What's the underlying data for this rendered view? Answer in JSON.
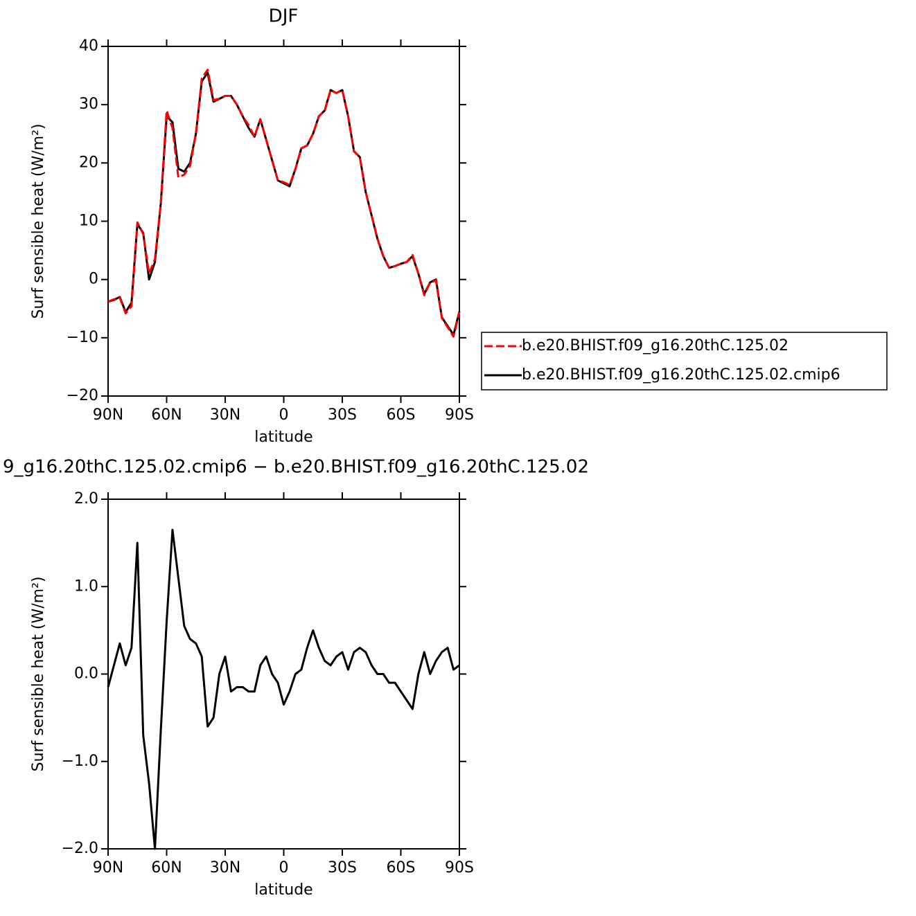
{
  "chart_data": [
    {
      "type": "line",
      "title": "DJF",
      "xlabel": "latitude",
      "ylabel": "Surf sensible heat (W/m²)",
      "x": [
        90,
        87,
        84,
        81,
        78,
        75,
        72,
        69,
        66,
        63,
        60,
        57,
        54,
        51,
        48,
        45,
        42,
        39,
        36,
        33,
        30,
        27,
        24,
        21,
        18,
        15,
        12,
        9,
        6,
        3,
        0,
        -3,
        -6,
        -9,
        -12,
        -15,
        -18,
        -21,
        -24,
        -27,
        -30,
        -33,
        -36,
        -39,
        -42,
        -45,
        -48,
        -51,
        -54,
        -57,
        -60,
        -63,
        -66,
        -69,
        -72,
        -75,
        -78,
        -81,
        -84,
        -87,
        -90
      ],
      "xlim": [
        90,
        -90
      ],
      "xticks": [
        {
          "value": 90,
          "label": "90N"
        },
        {
          "value": 60,
          "label": "60N"
        },
        {
          "value": 30,
          "label": "30N"
        },
        0,
        {
          "value": -30,
          "label": "30S"
        },
        {
          "value": -60,
          "label": "60S"
        },
        {
          "value": -90,
          "label": "90S"
        }
      ],
      "ylim": [
        -20,
        40
      ],
      "yticks": [
        {
          "value": -20,
          "label": "−20"
        },
        {
          "value": -10,
          "label": "−10"
        },
        0,
        10,
        20,
        30,
        40
      ],
      "legend": "right",
      "series": [
        {
          "name": "b.e20.BHIST.f09_g16.20thC.125.02",
          "color": "#ff0000",
          "linestyle": "dashed",
          "values": [
            -3.8,
            -3.4,
            -3.1,
            -5.8,
            -4.6,
            9.8,
            7.8,
            1,
            3.5,
            13,
            29,
            26,
            17.5,
            18,
            19.5,
            25,
            34.5,
            36,
            30.8,
            31,
            31.5,
            31.5,
            30,
            28,
            26.5,
            24.5,
            27.5,
            24,
            20.5,
            17,
            16.7,
            16.2,
            19,
            22.5,
            23,
            25,
            28,
            29,
            32.5,
            32,
            32.5,
            28,
            22,
            21,
            15,
            11,
            7,
            4,
            2,
            2.3,
            2.7,
            3,
            4.2,
            1,
            -2.7,
            -0.5,
            -0.2,
            -6.6,
            -8.2,
            -9.8,
            -5.6
          ]
        },
        {
          "name": "b.e20.BHIST.f09_g16.20thC.125.02.cmip6",
          "color": "#000000",
          "linestyle": "solid",
          "values": [
            -3.8,
            -3.5,
            -3,
            -5.6,
            -4,
            9.5,
            8,
            0,
            3,
            13,
            28,
            27,
            19,
            18.5,
            20,
            25,
            34,
            35.5,
            30.5,
            31,
            31.5,
            31.5,
            30,
            28,
            26,
            24.5,
            27.5,
            24,
            20.5,
            17,
            16.5,
            16,
            19,
            22.5,
            23,
            25,
            28,
            29,
            32.5,
            32,
            32.5,
            28,
            22,
            21,
            15,
            11,
            7,
            4,
            2,
            2.3,
            2.7,
            3,
            4,
            1,
            -2.5,
            -0.5,
            0,
            -6.5,
            -8,
            -9.5,
            -5.5
          ]
        }
      ]
    },
    {
      "type": "line",
      "title": "9_g16.20thC.125.02.cmip6 − b.e20.BHIST.f09_g16.20thC.125.02",
      "xlabel": "latitude",
      "ylabel": "Surf sensible heat (W/m²)",
      "x": [
        90,
        87,
        84,
        81,
        78,
        75,
        72,
        69,
        66,
        63,
        60,
        57,
        54,
        51,
        48,
        45,
        42,
        39,
        36,
        33,
        30,
        27,
        24,
        21,
        18,
        15,
        12,
        9,
        6,
        3,
        0,
        -3,
        -6,
        -9,
        -12,
        -15,
        -18,
        -21,
        -24,
        -27,
        -30,
        -33,
        -36,
        -39,
        -42,
        -45,
        -48,
        -51,
        -54,
        -57,
        -60,
        -63,
        -66,
        -69,
        -72,
        -75,
        -78,
        -81,
        -84,
        -87,
        -90
      ],
      "xlim": [
        90,
        -90
      ],
      "xticks": [
        {
          "value": 90,
          "label": "90N"
        },
        {
          "value": 60,
          "label": "60N"
        },
        {
          "value": 30,
          "label": "30N"
        },
        0,
        {
          "value": -30,
          "label": "30S"
        },
        {
          "value": -60,
          "label": "60S"
        },
        {
          "value": -90,
          "label": "90S"
        }
      ],
      "ylim": [
        -2,
        2
      ],
      "yticks": [
        {
          "value": -2,
          "label": "−2.0"
        },
        {
          "value": -1,
          "label": "−1.0"
        },
        {
          "value": 0,
          "label": "0.0"
        },
        {
          "value": 1,
          "label": "1.0"
        },
        {
          "value": 2,
          "label": "2.0"
        }
      ],
      "color": "#000000",
      "values": [
        -0.15,
        0.1,
        0.35,
        0.1,
        0.3,
        1.5,
        -0.7,
        -1.25,
        -2,
        -0.65,
        0.6,
        1.65,
        1.1,
        0.55,
        0.4,
        0.35,
        0.2,
        -0.6,
        -0.5,
        0,
        0.2,
        -0.2,
        -0.15,
        -0.15,
        -0.2,
        -0.2,
        0.1,
        0.2,
        0,
        -0.1,
        -0.35,
        -0.2,
        0,
        0.05,
        0.3,
        0.5,
        0.3,
        0.15,
        0.1,
        0.2,
        0.25,
        0.05,
        0.25,
        0.3,
        0.25,
        0.1,
        0,
        0,
        -0.1,
        -0.1,
        -0.2,
        -0.3,
        -0.4,
        0,
        0.25,
        0,
        0.15,
        0.25,
        0.3,
        0.05,
        0.1
      ]
    }
  ]
}
